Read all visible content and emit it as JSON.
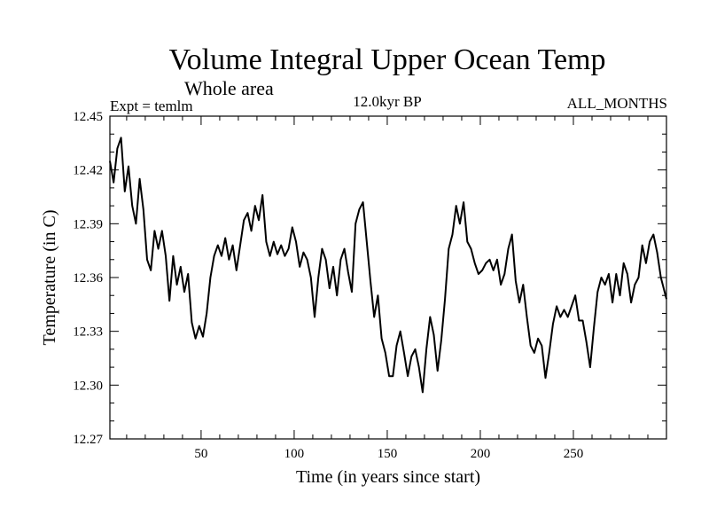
{
  "chart_data": {
    "type": "line",
    "title": "Volume Integral Upper Ocean Temp",
    "subtitle": "Whole area",
    "annotations": {
      "left": "Expt = temlm",
      "center": "12.0kyr BP",
      "right": "ALL_MONTHS"
    },
    "xlabel": "Time (in years since start)",
    "ylabel": "Temperature (in C)",
    "xlim": [
      1,
      300
    ],
    "ylim": [
      12.27,
      12.45
    ],
    "xticks": [
      50,
      100,
      150,
      200,
      250
    ],
    "xtick_labels": [
      "50",
      "100",
      "150",
      "200",
      "250"
    ],
    "yticks": [
      12.27,
      12.3,
      12.33,
      12.36,
      12.39,
      12.42,
      12.45
    ],
    "ytick_labels": [
      "12.27",
      "12.30",
      "12.33",
      "12.36",
      "12.39",
      "12.42",
      "12.45"
    ],
    "grid": false,
    "series": [
      {
        "name": "temlm",
        "color": "#000000",
        "x": [
          1,
          3,
          5,
          7,
          9,
          11,
          13,
          15,
          17,
          19,
          21,
          23,
          25,
          27,
          29,
          31,
          33,
          35,
          37,
          39,
          41,
          43,
          45,
          47,
          49,
          51,
          53,
          55,
          57,
          59,
          61,
          63,
          65,
          67,
          69,
          71,
          73,
          75,
          77,
          79,
          81,
          83,
          85,
          87,
          89,
          91,
          93,
          95,
          97,
          99,
          101,
          103,
          105,
          107,
          109,
          111,
          113,
          115,
          117,
          119,
          121,
          123,
          125,
          127,
          129,
          131,
          133,
          135,
          137,
          139,
          141,
          143,
          145,
          147,
          149,
          151,
          153,
          155,
          157,
          159,
          161,
          163,
          165,
          167,
          169,
          171,
          173,
          175,
          177,
          179,
          181,
          183,
          185,
          187,
          189,
          191,
          193,
          195,
          197,
          199,
          201,
          203,
          205,
          207,
          209,
          211,
          213,
          215,
          217,
          219,
          221,
          223,
          225,
          227,
          229,
          231,
          233,
          235,
          237,
          239,
          241,
          243,
          245,
          247,
          249,
          251,
          253,
          255,
          257,
          259,
          261,
          263,
          265,
          267,
          269,
          271,
          273,
          275,
          277,
          279,
          281,
          283,
          285,
          287,
          289,
          291,
          293,
          295,
          297,
          300
        ],
        "values": [
          12.425,
          12.413,
          12.432,
          12.438,
          12.408,
          12.422,
          12.4,
          12.39,
          12.415,
          12.398,
          12.37,
          12.364,
          12.386,
          12.376,
          12.386,
          12.372,
          12.347,
          12.372,
          12.356,
          12.366,
          12.352,
          12.362,
          12.335,
          12.326,
          12.333,
          12.327,
          12.34,
          12.36,
          12.372,
          12.378,
          12.372,
          12.382,
          12.37,
          12.378,
          12.364,
          12.378,
          12.392,
          12.396,
          12.386,
          12.4,
          12.392,
          12.406,
          12.38,
          12.372,
          12.38,
          12.373,
          12.378,
          12.372,
          12.376,
          12.388,
          12.38,
          12.366,
          12.374,
          12.37,
          12.36,
          12.338,
          12.36,
          12.376,
          12.37,
          12.354,
          12.366,
          12.35,
          12.37,
          12.376,
          12.363,
          12.352,
          12.39,
          12.398,
          12.402,
          12.38,
          12.358,
          12.338,
          12.35,
          12.326,
          12.318,
          12.305,
          12.305,
          12.322,
          12.33,
          12.318,
          12.305,
          12.316,
          12.32,
          12.31,
          12.296,
          12.32,
          12.338,
          12.328,
          12.308,
          12.325,
          12.348,
          12.376,
          12.384,
          12.4,
          12.39,
          12.402,
          12.38,
          12.376,
          12.368,
          12.362,
          12.364,
          12.368,
          12.37,
          12.364,
          12.37,
          12.356,
          12.362,
          12.376,
          12.384,
          12.358,
          12.346,
          12.356,
          12.338,
          12.322,
          12.318,
          12.326,
          12.322,
          12.304,
          12.318,
          12.334,
          12.344,
          12.338,
          12.342,
          12.338,
          12.344,
          12.35,
          12.336,
          12.336,
          12.324,
          12.31,
          12.332,
          12.352,
          12.36,
          12.356,
          12.362,
          12.346,
          12.362,
          12.35,
          12.368,
          12.362,
          12.346,
          12.356,
          12.36,
          12.378,
          12.368,
          12.38,
          12.384,
          12.374,
          12.36,
          12.348
        ]
      }
    ]
  }
}
